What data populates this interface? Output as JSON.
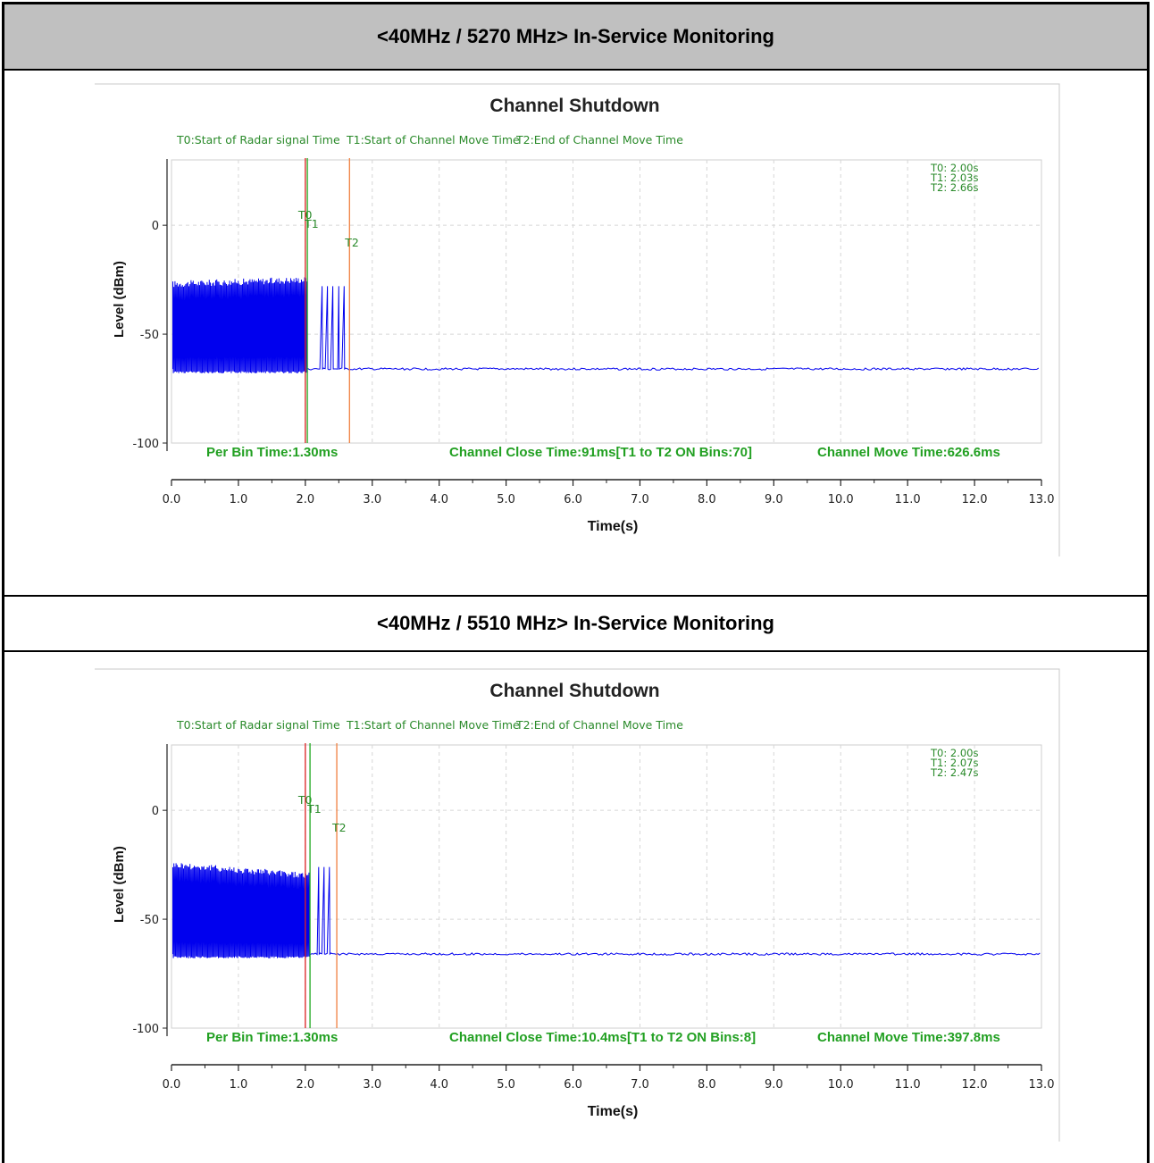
{
  "headers": {
    "row1": "<40MHz / 5270 MHz> In-Service Monitoring",
    "row2": "<40MHz / 5510 MHz> In-Service Monitoring"
  },
  "colors": {
    "signal": "#0000ee",
    "t0_line": "#dd2222",
    "t1_line": "#22aa22",
    "t2_line": "#f08040",
    "legend_text": "#2a8a2a",
    "stat_text": "#22a022",
    "header_bg": "#c0c0c0"
  },
  "chart_data": [
    {
      "type": "line",
      "title": "Channel Shutdown",
      "xlabel": "Time(s)",
      "ylabel": "Level (dBm)",
      "xlim": [
        0,
        13
      ],
      "ylim": [
        -100,
        30
      ],
      "x_ticks": [
        "0.0",
        "1.0",
        "2.0",
        "3.0",
        "4.0",
        "5.0",
        "6.0",
        "7.0",
        "8.0",
        "9.0",
        "10.0",
        "11.0",
        "12.0",
        "13.0"
      ],
      "y_ticks": [
        "0",
        "-50",
        "-100"
      ],
      "grid": true,
      "legend": [
        "T0:Start of Radar signal Time",
        "T1:Start of Channel Move Time",
        "T2:End of Channel Move Time"
      ],
      "markers": [
        {
          "name": "T0",
          "x": 2.0,
          "label": "T0: 2.00s"
        },
        {
          "name": "T1",
          "x": 2.03,
          "label": "T1: 2.03s"
        },
        {
          "name": "T2",
          "x": 2.66,
          "label": "T2: 2.66s"
        }
      ],
      "stats": {
        "per_bin": "Per Bin Time:1.30ms",
        "close": "Channel Close Time:91ms[T1 to T2 ON Bins:70]",
        "move": "Channel Move Time:626.6ms"
      },
      "series": [
        {
          "values_description": "",
          "burst_end": 2.03,
          "burst_top_start": -27,
          "burst_top_end": -25,
          "noise_floor": -66,
          "tail_pulses": [
            2.25,
            2.33,
            2.41,
            2.5,
            2.58
          ],
          "tail_top": -28
        }
      ]
    },
    {
      "type": "line",
      "title": "Channel Shutdown",
      "xlabel": "Time(s)",
      "ylabel": "Level (dBm)",
      "xlim": [
        0,
        13
      ],
      "ylim": [
        -100,
        30
      ],
      "x_ticks": [
        "0.0",
        "1.0",
        "2.0",
        "3.0",
        "4.0",
        "5.0",
        "6.0",
        "7.0",
        "8.0",
        "9.0",
        "10.0",
        "11.0",
        "12.0",
        "13.0"
      ],
      "y_ticks": [
        "0",
        "-50",
        "-100"
      ],
      "grid": true,
      "legend": [
        "T0:Start of Radar signal Time",
        "T1:Start of Channel Move Time",
        "T2:End of Channel Move Time"
      ],
      "markers": [
        {
          "name": "T0",
          "x": 2.0,
          "label": "T0: 2.00s"
        },
        {
          "name": "T1",
          "x": 2.07,
          "label": "T1: 2.07s"
        },
        {
          "name": "T2",
          "x": 2.47,
          "label": "T2: 2.47s"
        }
      ],
      "stats": {
        "per_bin": "Per Bin Time:1.30ms",
        "close": "Channel Close Time:10.4ms[T1 to T2 ON Bins:8]",
        "move": "Channel Move Time:397.8ms"
      },
      "series": [
        {
          "values_description": "",
          "burst_end": 2.07,
          "burst_top_start": -25,
          "burst_top_end": -30,
          "noise_floor": -66,
          "tail_pulses": [
            2.2,
            2.28,
            2.36
          ],
          "tail_top": -26
        }
      ]
    }
  ]
}
